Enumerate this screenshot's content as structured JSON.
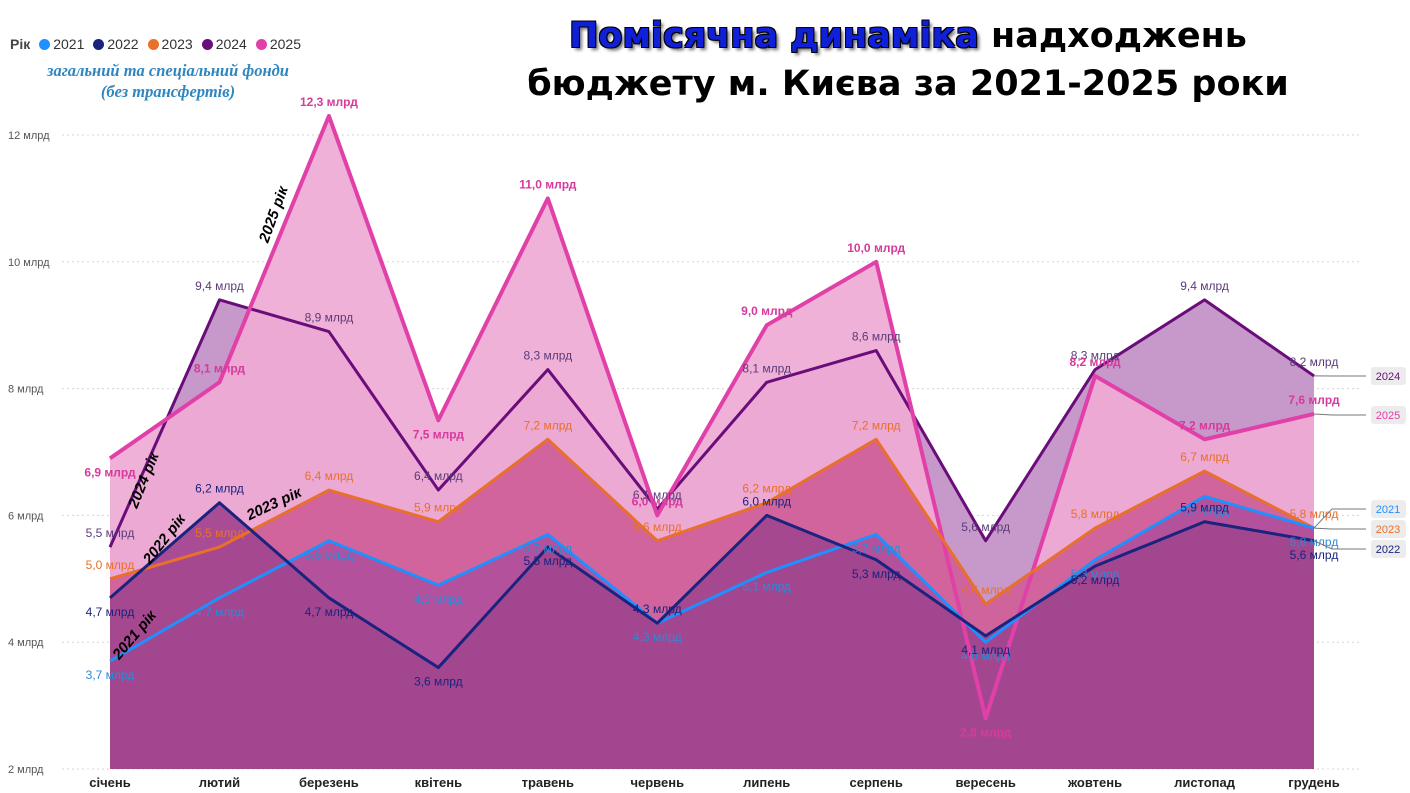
{
  "legend": {
    "title": "Рік",
    "items": [
      {
        "label": "2021",
        "color": "#1e90ff"
      },
      {
        "label": "2022",
        "color": "#1a237e"
      },
      {
        "label": "2023",
        "color": "#e8702a"
      },
      {
        "label": "2024",
        "color": "#6a0c7a"
      },
      {
        "label": "2025",
        "color": "#e040a8"
      }
    ]
  },
  "subtitle": {
    "line1": "загальний та спеціальний фонди",
    "line2": "(без трансфертів)"
  },
  "title": {
    "highlight": "Помісячна динаміка",
    "rest1": "надходжень",
    "line2": "бюджету м. Києва за 2021-2025 роки"
  },
  "chart_data": {
    "type": "area",
    "categories": [
      "січень",
      "лютий",
      "березень",
      "квітень",
      "травень",
      "червень",
      "липень",
      "серпень",
      "вересень",
      "жовтень",
      "листопад",
      "грудень"
    ],
    "y_ticks": [
      "2 млрд",
      "4 млрд",
      "6 млрд",
      "8 млрд",
      "10 млрд",
      "12 млрд"
    ],
    "ylim": [
      2,
      12.7
    ],
    "grid": true,
    "series": [
      {
        "name": "2024",
        "color": "#6a0c7a",
        "fill": "#c28fc6",
        "values": [
          5.5,
          9.4,
          8.9,
          6.4,
          8.3,
          6.1,
          8.1,
          8.6,
          5.6,
          8.3,
          9.4,
          8.2
        ],
        "labels": [
          "5,5 млрд",
          "9,4 млрд",
          "8,9 млрд",
          "6,4 млрд",
          "8,3 млрд",
          "6,1 млрд",
          "8,1 млрд",
          "8,6 млрд",
          "5,6 млрд",
          "8,3 млрд",
          "9,4 млрд",
          "8,2 млрд"
        ],
        "tag": "2024",
        "annotation": "2024 рік"
      },
      {
        "name": "2025",
        "color": "#e040a8",
        "fill": "#efaad5",
        "values": [
          6.9,
          8.1,
          12.3,
          7.5,
          11.0,
          6.0,
          9.0,
          10.0,
          2.8,
          8.2,
          7.2,
          7.6
        ],
        "labels": [
          "6,9 млрд",
          "8,1 млрд",
          "12,3 млрд",
          "7,5 млрд",
          "11,0 млрд",
          "6,0 млрд",
          "9,0 млрд",
          "10,0 млрд",
          "2,8 млрд",
          "8,2 млрд",
          "7,2 млрд",
          "7,6 млрд"
        ],
        "tag": "2025",
        "annotation": "2025 рік"
      },
      {
        "name": "2023",
        "color": "#e8702a",
        "fill": "#cf5e98",
        "values": [
          5.0,
          5.5,
          6.4,
          5.9,
          7.2,
          5.6,
          6.2,
          7.2,
          4.6,
          5.8,
          6.7,
          5.8
        ],
        "labels": [
          "5,0 млрд",
          "5,5 млрд",
          "6,4 млрд",
          "5,9 млрд",
          "7,2 млрд",
          "5,6 млрд",
          "6,2 млрд",
          "7,2 млрд",
          "4,6 млрд",
          "5,8 млрд",
          "6,7 млрд",
          "5,8 млрд"
        ],
        "tag": "2023",
        "annotation": "2023 рік"
      },
      {
        "name": "2021",
        "color": "#1e90ff",
        "fill": "#b04f9c",
        "values": [
          3.7,
          4.7,
          5.6,
          4.9,
          5.7,
          4.3,
          5.1,
          5.7,
          4.0,
          5.3,
          6.3,
          5.8
        ],
        "labels": [
          "3,7 млрд",
          "4,7 млрд",
          "5,6 млрд",
          "4,9 млрд",
          "5,7 млрд",
          "4,3 млрд",
          "5,1 млрд",
          "5,7 млрд",
          "4,0 млрд",
          "5,3 млрд",
          "6,3 млрд",
          "5,8 млрд"
        ],
        "tag": "2021",
        "annotation": "2021 рік"
      },
      {
        "name": "2022",
        "color": "#1a237e",
        "fill": "#a2458f",
        "values": [
          4.7,
          6.2,
          4.7,
          3.6,
          5.5,
          4.3,
          6.0,
          5.3,
          4.1,
          5.2,
          5.9,
          5.6
        ],
        "labels": [
          "4,7 млрд",
          "6,2 млрд",
          "4,7 млрд",
          "3,6 млрд",
          "5,5 млрд",
          "4,3 млрд",
          "6,0 млрд",
          "5,3 млрд",
          "4,1 млрд",
          "5,2 млрд",
          "5,9 млрд",
          "5,6 млрд"
        ],
        "tag": "2022",
        "annotation": "2022 рік"
      }
    ]
  }
}
